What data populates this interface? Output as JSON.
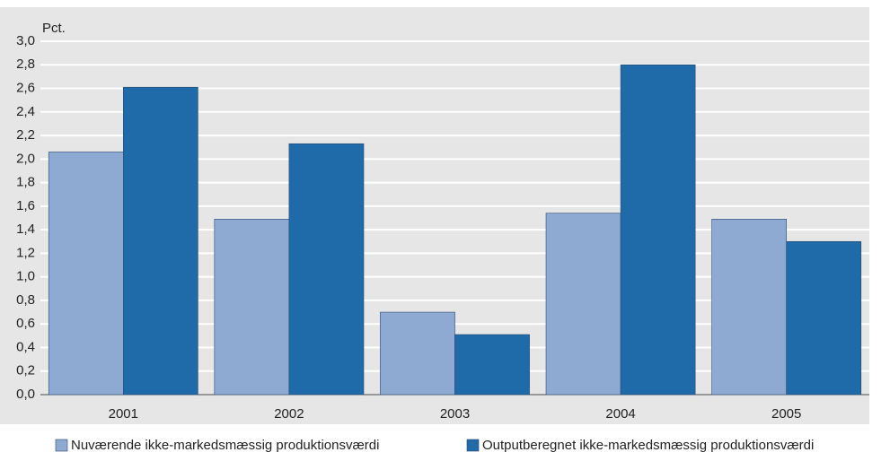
{
  "chart_data": {
    "type": "bar",
    "y_label": "Pct.",
    "categories": [
      "2001",
      "2002",
      "2003",
      "2004",
      "2005"
    ],
    "series": [
      {
        "name": "Nuværende ikke-markedsmæssig produktionsværdi",
        "color": "#8eaad2",
        "values": [
          2.06,
          1.49,
          0.7,
          1.54,
          1.49
        ]
      },
      {
        "name": "Outputberegnet ikke-markedsmæssig produktionsværdi",
        "color": "#1f6aa8",
        "values": [
          2.61,
          2.13,
          0.51,
          2.8,
          1.3
        ]
      }
    ],
    "ylim": [
      0,
      3.0
    ],
    "yticks": [
      {
        "value": 0,
        "label": "0,0"
      },
      {
        "value": 0.2,
        "label": "0,2"
      },
      {
        "value": 0.4,
        "label": "0,4"
      },
      {
        "value": 0.6,
        "label": "0,6"
      },
      {
        "value": 0.8,
        "label": "0,8"
      },
      {
        "value": 1.0,
        "label": "1,0"
      },
      {
        "value": 1.2,
        "label": "1,2"
      },
      {
        "value": 1.4,
        "label": "1,4"
      },
      {
        "value": 1.6,
        "label": "1,6"
      },
      {
        "value": 1.8,
        "label": "1,8"
      },
      {
        "value": 2.0,
        "label": "2,0"
      },
      {
        "value": 2.2,
        "label": "2,2"
      },
      {
        "value": 2.4,
        "label": "2,4"
      },
      {
        "value": 2.6,
        "label": "2,6"
      },
      {
        "value": 2.8,
        "label": "2,8"
      },
      {
        "value": 3.0,
        "label": "3,0"
      }
    ],
    "grid": true
  }
}
